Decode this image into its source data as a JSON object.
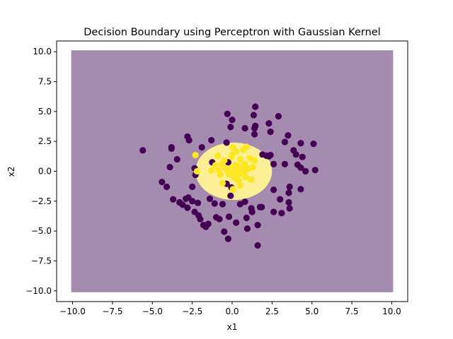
{
  "chart_data": {
    "type": "scatter",
    "title": "Decision Boundary using Perceptron with Gaussian Kernel",
    "xlabel": "x1",
    "ylabel": "x2",
    "xlim": [
      -11.0,
      11.0
    ],
    "ylim": [
      -10.9,
      10.9
    ],
    "xticks": [
      -10.0,
      -7.5,
      -5.0,
      -2.5,
      0.0,
      2.5,
      5.0,
      7.5,
      10.0
    ],
    "yticks": [
      -10.0,
      -7.5,
      -5.0,
      -2.5,
      0.0,
      2.5,
      5.0,
      7.5,
      10.0
    ],
    "xtick_labels": [
      "−10.0",
      "−7.5",
      "−5.0",
      "−2.5",
      "0.0",
      "2.5",
      "5.0",
      "7.5",
      "10.0"
    ],
    "ytick_labels": [
      "−10.0",
      "−7.5",
      "−5.0",
      "−2.5",
      "0.0",
      "2.5",
      "5.0",
      "7.5",
      "10.0"
    ],
    "grid": false,
    "legend": "none",
    "colors": {
      "class0": "#440154",
      "class1": "#fde725",
      "region0": "#a68bb0",
      "region1": "#fcef96"
    },
    "decision_region": {
      "grid_extent": [
        -10,
        10,
        -10,
        10
      ],
      "class1_region_center": [
        0.1,
        0.0
      ],
      "class1_region_radius": 2.4
    },
    "series": [
      {
        "label": 0,
        "points": [
          [
            -5.6,
            1.75
          ],
          [
            -3.8,
            2.0
          ],
          [
            -3.8,
            1.9
          ],
          [
            -4.4,
            -0.9
          ],
          [
            -4.1,
            -1.3
          ],
          [
            -3.9,
            0.35
          ],
          [
            -3.7,
            -2.35
          ],
          [
            -3.45,
            1.0
          ],
          [
            -3.3,
            -2.6
          ],
          [
            -3.1,
            -2.8
          ],
          [
            -2.9,
            -2.3
          ],
          [
            -2.75,
            -2.2
          ],
          [
            -2.8,
            -3.05
          ],
          [
            -2.7,
            2.6
          ],
          [
            -2.8,
            2.9
          ],
          [
            -2.5,
            -1.3
          ],
          [
            -2.5,
            -2.5
          ],
          [
            -2.35,
            -3.4
          ],
          [
            -2.3,
            -0.3
          ],
          [
            -2.15,
            -2.65
          ],
          [
            -2.1,
            -3.7
          ],
          [
            -2.0,
            -4.0
          ],
          [
            -1.9,
            2.0
          ],
          [
            -1.8,
            -4.5
          ],
          [
            -1.65,
            -4.65
          ],
          [
            -1.5,
            -4.4
          ],
          [
            -1.4,
            -2.3
          ],
          [
            -1.3,
            2.6
          ],
          [
            -1.0,
            -3.85
          ],
          [
            -0.8,
            -4.0
          ],
          [
            -0.6,
            -2.75
          ],
          [
            -0.5,
            -5.05
          ],
          [
            -0.35,
            2.4
          ],
          [
            -0.3,
            4.8
          ],
          [
            -0.2,
            -3.8
          ],
          [
            -0.1,
            3.7
          ],
          [
            -0.05,
            -1.35
          ],
          [
            0.0,
            4.3
          ],
          [
            -0.25,
            -5.65
          ],
          [
            0.25,
            -4.3
          ],
          [
            0.5,
            -2.75
          ],
          [
            0.8,
            -2.55
          ],
          [
            0.8,
            3.6
          ],
          [
            0.9,
            -3.9
          ],
          [
            0.95,
            -4.8
          ],
          [
            1.2,
            -3.1
          ],
          [
            1.25,
            -3.4
          ],
          [
            1.4,
            3.6
          ],
          [
            1.45,
            3.8
          ],
          [
            1.35,
            4.7
          ],
          [
            1.45,
            5.4
          ],
          [
            1.6,
            -6.2
          ],
          [
            1.6,
            -4.5
          ],
          [
            1.4,
            3.1
          ],
          [
            1.75,
            -3.0
          ],
          [
            1.85,
            -3.0
          ],
          [
            2.15,
            1.3
          ],
          [
            2.3,
            1.25
          ],
          [
            2.4,
            1.35
          ],
          [
            2.4,
            3.3
          ],
          [
            2.3,
            4.0
          ],
          [
            2.6,
            -1.55
          ],
          [
            2.6,
            -3.4
          ],
          [
            2.9,
            4.6
          ],
          [
            3.0,
            -2.35
          ],
          [
            3.1,
            -3.5
          ],
          [
            3.3,
            0.6
          ],
          [
            3.3,
            2.45
          ],
          [
            3.5,
            3.0
          ],
          [
            3.55,
            -2.6
          ],
          [
            3.6,
            -3.1
          ],
          [
            3.6,
            -1.3
          ],
          [
            3.55,
            -1.8
          ],
          [
            3.85,
            1.75
          ],
          [
            4.0,
            1.4
          ],
          [
            4.1,
            0.55
          ],
          [
            4.3,
            2.35
          ],
          [
            4.3,
            0.3
          ],
          [
            4.3,
            -1.5
          ],
          [
            4.4,
            1.2
          ],
          [
            4.6,
            0.0
          ],
          [
            5.1,
            2.3
          ],
          [
            5.2,
            0.1
          ],
          [
            -0.25,
            0.75
          ],
          [
            -1.25,
            0.75
          ],
          [
            -2.35,
            0.25
          ],
          [
            -0.35,
            -1.05
          ],
          [
            -0.1,
            -2.05
          ],
          [
            2.6,
            0.6
          ],
          [
            1.9,
            1.4
          ],
          [
            -1.1,
            -2.7
          ]
        ]
      },
      {
        "label": 1,
        "points": [
          [
            -2.3,
            1.35
          ],
          [
            -2.2,
            0.0
          ],
          [
            -1.3,
            0.05
          ],
          [
            -1.05,
            0.5
          ],
          [
            -0.85,
            0.1
          ],
          [
            -0.75,
            -0.3
          ],
          [
            -0.65,
            0.6
          ],
          [
            -0.5,
            0.9
          ],
          [
            -0.45,
            0.3
          ],
          [
            -0.3,
            0.0
          ],
          [
            -0.2,
            -0.25
          ],
          [
            -0.1,
            0.25
          ],
          [
            -0.05,
            1.2
          ],
          [
            0.0,
            1.4
          ],
          [
            0.05,
            2.0
          ],
          [
            0.1,
            -0.1
          ],
          [
            0.15,
            -0.55
          ],
          [
            0.2,
            0.5
          ],
          [
            0.3,
            -0.35
          ],
          [
            0.35,
            0.1
          ],
          [
            0.4,
            -0.8
          ],
          [
            0.45,
            0.4
          ],
          [
            0.5,
            1.0
          ],
          [
            0.5,
            -1.2
          ],
          [
            0.6,
            0.3
          ],
          [
            0.7,
            1.8
          ],
          [
            0.75,
            -0.05
          ],
          [
            0.8,
            0.6
          ],
          [
            0.85,
            -0.5
          ],
          [
            0.9,
            2.05
          ],
          [
            1.0,
            0.2
          ],
          [
            1.1,
            1.1
          ],
          [
            1.2,
            -0.7
          ],
          [
            1.3,
            0.35
          ],
          [
            1.4,
            0.9
          ],
          [
            0.25,
            1.65
          ],
          [
            -0.9,
            1.3
          ],
          [
            0.05,
            -1.5
          ],
          [
            -0.6,
            -1.0
          ],
          [
            0.55,
            -0.2
          ]
        ]
      }
    ]
  }
}
